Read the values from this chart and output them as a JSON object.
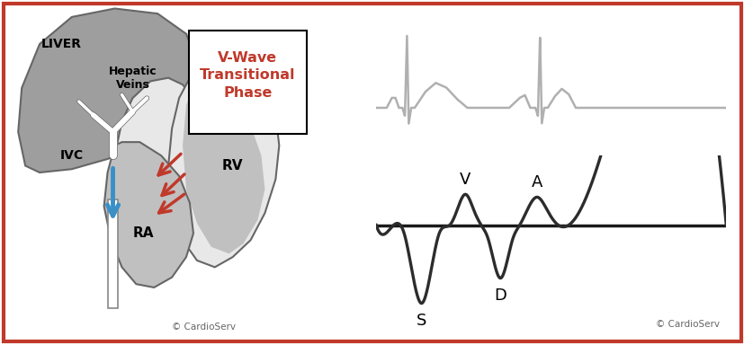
{
  "bg_color": "#ffffff",
  "border_color": "#c0392b",
  "border_lw": 3,
  "title_box_text": "V-Wave\nTransitional\nPhase",
  "title_box_color": "#c0392b",
  "label_liver": "LIVER",
  "label_hv": "Hepatic\nVeins",
  "label_ivc": "IVC",
  "label_ra": "RA",
  "label_rv": "RV",
  "copyright_left": "© CardioServ",
  "copyright_right": "© CardioServ",
  "ecg_color": "#b0b0b0",
  "ecg_lw": 1.8,
  "doppler_color": "#2c2c2c",
  "doppler_lw": 2.4,
  "baseline_color": "#1a1a1a",
  "baseline_lw": 2.5,
  "label_V": "V",
  "label_A": "A",
  "label_S": "S",
  "label_D": "D",
  "organ_gray": "#9e9e9e",
  "organ_light": "#c0c0c0",
  "outline_color": "#666666",
  "heart_outer": "#d0d0d0",
  "heart_inner": "#c0c0c0",
  "heart_white": "#e8e8e8",
  "ivc_color": "#3a8fc7",
  "arrow_red": "#c0392b"
}
